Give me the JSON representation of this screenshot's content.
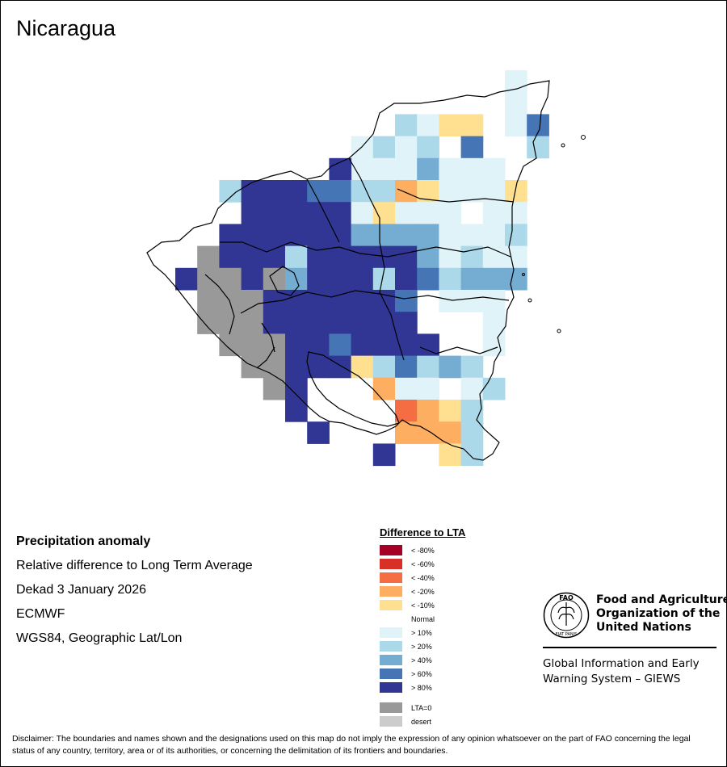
{
  "title": "Nicaragua",
  "info": {
    "product": "Precipitation anomaly",
    "description": "Relative difference to Long Term Average",
    "period": "Dekad 3 January 2026",
    "source": "ECMWF",
    "projection": "WGS84, Geographic Lat/Lon"
  },
  "legend": {
    "title": "Difference to LTA",
    "classes": [
      {
        "label": "< -80%",
        "color": "#a50026"
      },
      {
        "label": "< -60%",
        "color": "#d73027"
      },
      {
        "label": "< -40%",
        "color": "#f46d43"
      },
      {
        "label": "< -20%",
        "color": "#fdae61"
      },
      {
        "label": "< -10%",
        "color": "#fee090"
      },
      {
        "label": "Normal",
        "color": "none"
      },
      {
        "label": "> 10%",
        "color": "#e0f3f8"
      },
      {
        "label": "> 20%",
        "color": "#abd9e9"
      },
      {
        "label": "> 40%",
        "color": "#74add1"
      },
      {
        "label": "> 60%",
        "color": "#4575b4"
      },
      {
        "label": "> 80%",
        "color": "#313695"
      }
    ],
    "extra": [
      {
        "label": "LTA=0",
        "color": "#999999"
      },
      {
        "label": "desert",
        "color": "#cccccc"
      }
    ]
  },
  "organization": {
    "name_lines": [
      "Food and Agriculture",
      "Organization of the",
      "United Nations"
    ],
    "system_lines": [
      "Global Information and Early",
      "Warning System – GIEWS"
    ],
    "logo_text": "FAO",
    "logo_motto": "FIAT PANIS"
  },
  "disclaimer": "Disclaimer: The boundaries and names shown and the designations used on this map do not imply the expression of any opinion whatsoever on the part of FAO concerning the legal status of any country, territory, area or of its authorities, or concerning the delimitation of its frontiers and boundaries."
}
